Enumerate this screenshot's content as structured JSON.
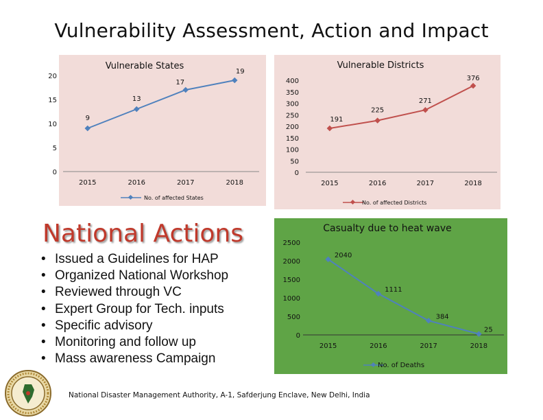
{
  "page": {
    "title": "Vulnerability Assessment, Action and Impact",
    "footer": "National Disaster Management Authority, A-1, Safderjung Enclave, New Delhi, India",
    "logo_icon": "ndma-emblem-icon"
  },
  "national_actions": {
    "heading": "National Actions",
    "items": [
      "Issued a Guidelines for HAP",
      "Organized National Workshop",
      "Reviewed through VC",
      "Expert Group for Tech. inputs",
      "Specific advisory",
      "Monitoring and follow up",
      "Mass awareness Campaign"
    ]
  },
  "chart_data": [
    {
      "type": "line",
      "title": "Vulnerable States",
      "categories": [
        "2015",
        "2016",
        "2017",
        "2018"
      ],
      "series": [
        {
          "name": "No. of affected States",
          "values": [
            9,
            13,
            17,
            19
          ]
        }
      ],
      "data_labels": [
        "9",
        "13",
        "17",
        "19"
      ],
      "y_ticks": [
        "0",
        "5",
        "10",
        "15",
        "20"
      ],
      "ylim": [
        0,
        20
      ],
      "legend": "bottom",
      "grid": false,
      "background": "#f2dcd9",
      "line_color": "#4f81bd"
    },
    {
      "type": "line",
      "title": "Vulnerable Districts",
      "categories": [
        "2015",
        "2016",
        "2017",
        "2018"
      ],
      "series": [
        {
          "name": "No. of affected Districts",
          "values": [
            191,
            225,
            271,
            376
          ]
        }
      ],
      "data_labels": [
        "191",
        "225",
        "271",
        "376"
      ],
      "y_ticks": [
        "0",
        "50",
        "100",
        "150",
        "200",
        "250",
        "300",
        "350",
        "400"
      ],
      "ylim": [
        0,
        400
      ],
      "legend": "bottom",
      "grid": false,
      "background": "#f2dcd9",
      "line_color": "#c0504d"
    },
    {
      "type": "line",
      "title": "Casualty  due to heat wave",
      "categories": [
        "2015",
        "2016",
        "2017",
        "2018"
      ],
      "series": [
        {
          "name": "No. of Deaths",
          "values": [
            2040,
            1111,
            384,
            25
          ]
        }
      ],
      "data_labels": [
        "2040",
        "1111",
        "384",
        "25"
      ],
      "y_ticks": [
        "0",
        "500",
        "1000",
        "1500",
        "2000",
        "2500"
      ],
      "ylim": [
        0,
        2500
      ],
      "legend": "bottom",
      "grid": false,
      "background": "#5fa446",
      "line_color": "#4f81bd"
    }
  ]
}
